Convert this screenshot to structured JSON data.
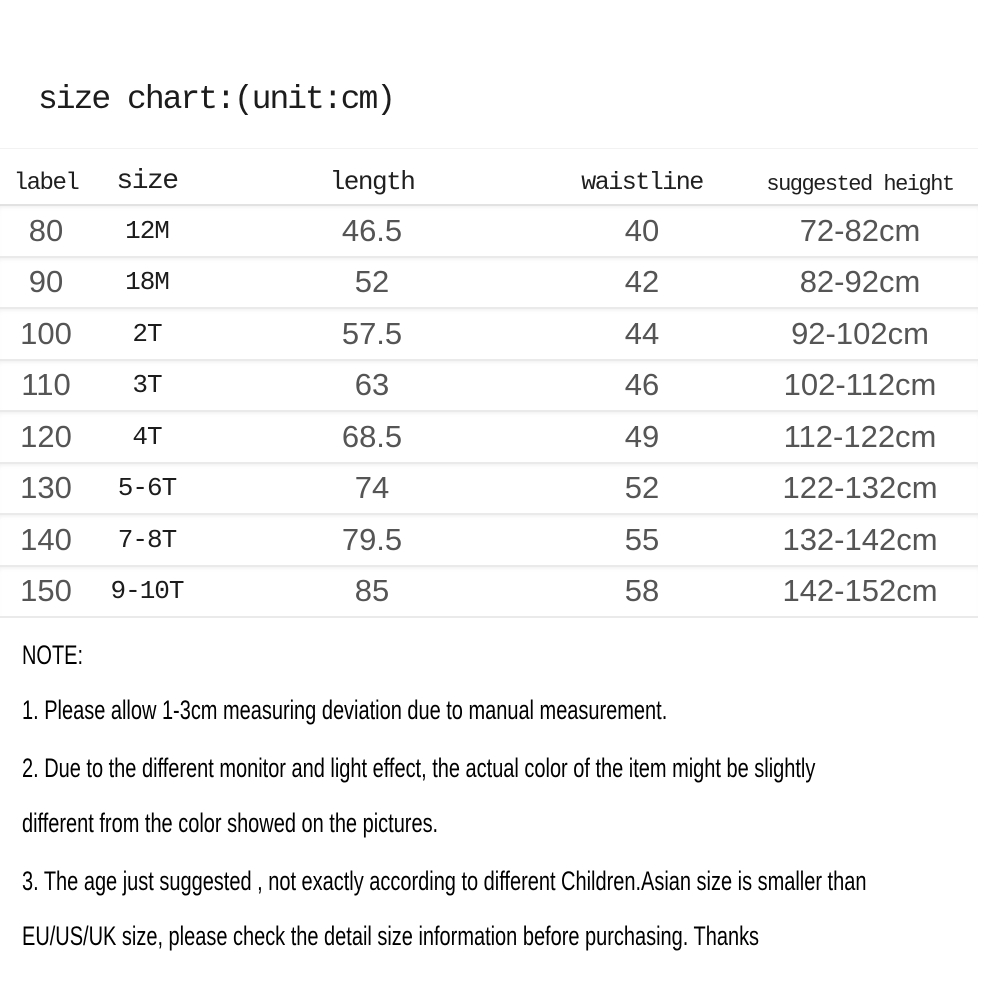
{
  "title": "size chart:(unit:cm)",
  "table": {
    "headers": {
      "label": "label",
      "size": "size",
      "length": "length",
      "waistline": "waistline",
      "height": "suggested height"
    },
    "rows": [
      {
        "label": "80",
        "size": "12M",
        "length": "46.5",
        "waistline": "40",
        "height": "72-82cm"
      },
      {
        "label": "90",
        "size": "18M",
        "length": "52",
        "waistline": "42",
        "height": "82-92cm"
      },
      {
        "label": "100",
        "size": "2T",
        "length": "57.5",
        "waistline": "44",
        "height": "92-102cm"
      },
      {
        "label": "110",
        "size": "3T",
        "length": "63",
        "waistline": "46",
        "height": "102-112cm"
      },
      {
        "label": "120",
        "size": "4T",
        "length": "68.5",
        "waistline": "49",
        "height": "112-122cm"
      },
      {
        "label": "130",
        "size": "5-6T",
        "length": "74",
        "waistline": "52",
        "height": "122-132cm"
      },
      {
        "label": "140",
        "size": "7-8T",
        "length": "79.5",
        "waistline": "55",
        "height": "132-142cm"
      },
      {
        "label": "150",
        "size": "9-10T",
        "length": "85",
        "waistline": "58",
        "height": "142-152cm"
      }
    ]
  },
  "notes": {
    "heading": "NOTE:",
    "lines": [
      "1. Please allow 1-3cm measuring deviation due to manual measurement.",
      "2. Due to the different monitor and light effect, the actual color of the item might be slightly",
      "different from the color showed on the pictures.",
      "3. The age just suggested , not exactly according to different Children.Asian size is smaller than",
      "EU/US/UK size, please check the detail size information before purchasing. Thanks"
    ]
  },
  "colors": {
    "background": "#ffffff",
    "heading_text": "#1c1c1c",
    "value_text": "#555555",
    "note_text": "#000000",
    "divider": "#eaeaea"
  }
}
